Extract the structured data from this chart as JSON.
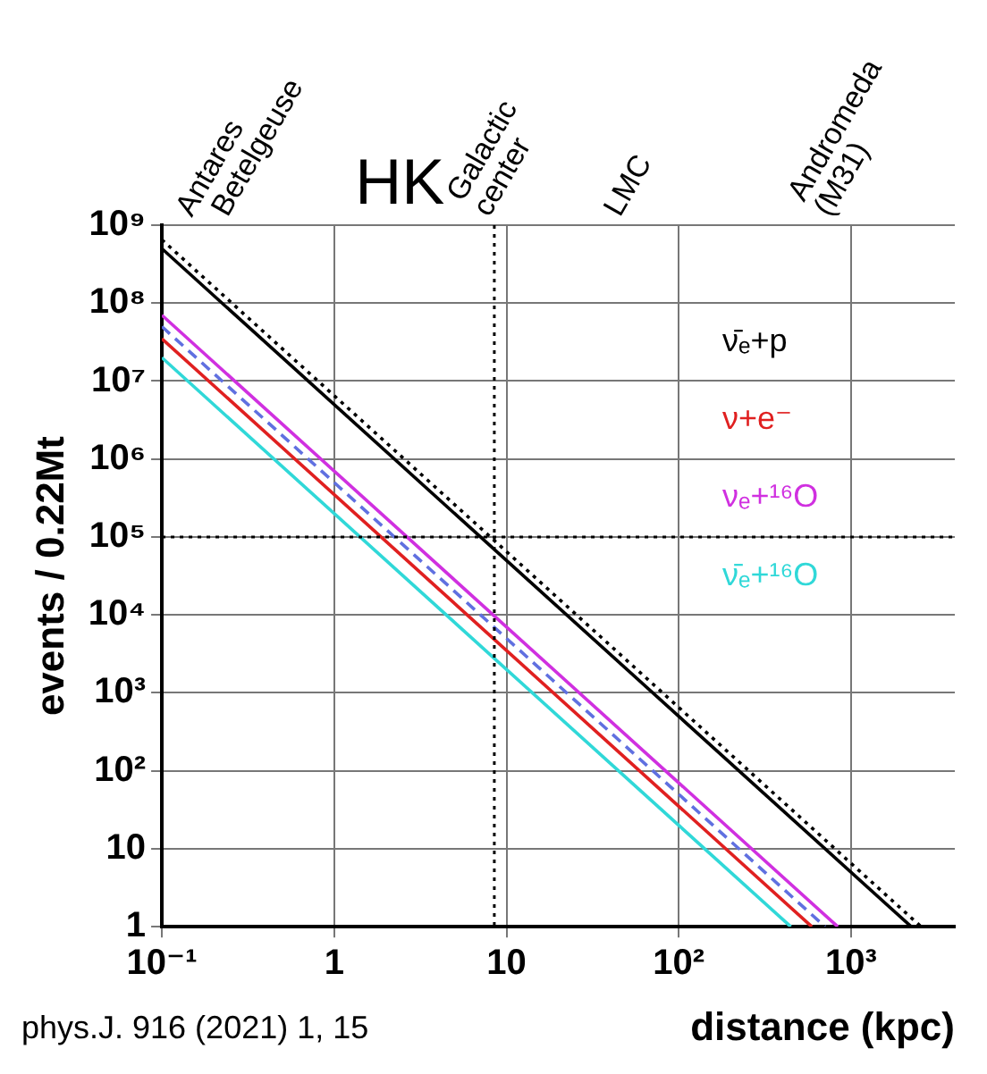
{
  "chart_data": {
    "type": "line",
    "title": "HK",
    "xlabel": "distance (kpc)",
    "ylabel": "events / 0.22Mt",
    "log": "xy",
    "grid": true,
    "legend": "top right",
    "marker": "none",
    "xlim": [
      0.1,
      4000
    ],
    "xticks": [
      {
        "value": 0.1,
        "label": "10⁻¹"
      },
      1,
      10,
      {
        "value": 100,
        "label": "10²"
      },
      {
        "value": 1000,
        "label": "10³"
      }
    ],
    "ylim": [
      1,
      1000000000
    ],
    "yticks": [
      1,
      10,
      {
        "value": 100,
        "label": "10²"
      },
      {
        "value": 1000,
        "label": "10³"
      },
      {
        "value": 10000,
        "label": "10⁴"
      },
      {
        "value": 100000,
        "label": "10⁵"
      },
      {
        "value": 1000000,
        "label": "10⁶"
      },
      {
        "value": 10000000,
        "label": "10⁷"
      },
      {
        "value": 100000000,
        "label": "10⁸"
      },
      {
        "value": 1000000000,
        "label": "10⁹"
      }
    ],
    "series": [
      {
        "name": "ν̄ₑ+p",
        "color": "#000000",
        "x": [
          0.1,
          2236
        ],
        "values": [
          500000000,
          1
        ],
        "line_style": "solid"
      },
      {
        "color": "#000000",
        "x": [
          0.1,
          2550
        ],
        "values": [
          650000000,
          1
        ],
        "line_style": "dotted"
      },
      {
        "name": "ν+e⁻",
        "color": "#e02020",
        "x": [
          0.1,
          592
        ],
        "values": [
          35000000,
          1
        ],
        "line_style": "solid"
      },
      {
        "color": "#6070e0",
        "x": [
          0.1,
          707
        ],
        "values": [
          50000000,
          1
        ],
        "line_style": "dashed"
      },
      {
        "name": "νₑ+¹⁶O",
        "color": "#d030e0",
        "x": [
          0.1,
          837
        ],
        "values": [
          70000000,
          1
        ],
        "line_style": "solid"
      },
      {
        "name": "ν̄ₑ+¹⁶O",
        "color": "#30d8d8",
        "x": [
          0.1,
          447
        ],
        "values": [
          20000000,
          1
        ],
        "line_style": "solid"
      }
    ],
    "ref_lines": [
      {
        "axis": "x",
        "value": 8.5,
        "line_style": "dotted",
        "color": "#000000"
      },
      {
        "axis": "y",
        "value": 100000,
        "line_style": "dotted",
        "color": "#000000"
      }
    ],
    "annotations": [
      "Antares",
      "Betelgeuse",
      "Galactic\ncenter",
      "LMC",
      "Andromeda\n(M31)",
      "phys.J. 916 (2021) 1, 15"
    ]
  }
}
